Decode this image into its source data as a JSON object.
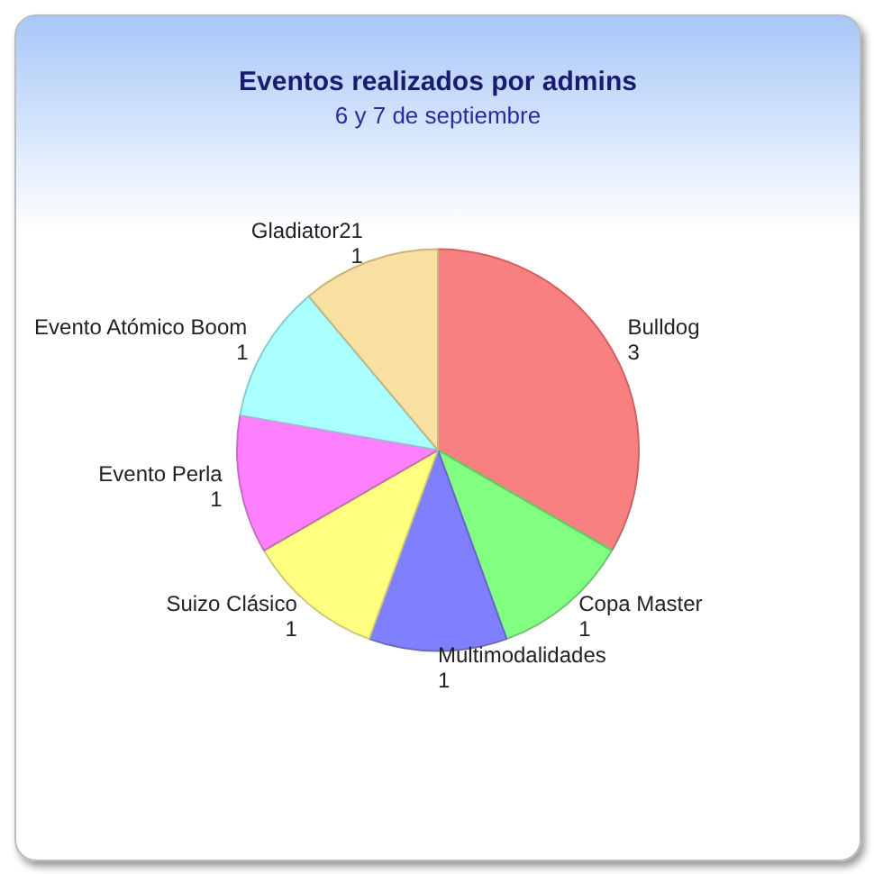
{
  "chart_data": {
    "type": "pie",
    "title": "Eventos realizados por admins",
    "subtitle": "6 y 7 de septiembre",
    "categories": [
      "Bulldog",
      "Copa Master",
      "Multimodalidades",
      "Suizo Clásico",
      "Evento Perla",
      "Evento Atómico Boom",
      "Gladiator21"
    ],
    "values": [
      3,
      1,
      1,
      1,
      1,
      1,
      1
    ],
    "colors": [
      "#f88080",
      "#80ff80",
      "#8080ff",
      "#ffff80",
      "#ff80ff",
      "#aaffff",
      "#f8e0a0"
    ],
    "data_labels": true,
    "legend": false
  }
}
